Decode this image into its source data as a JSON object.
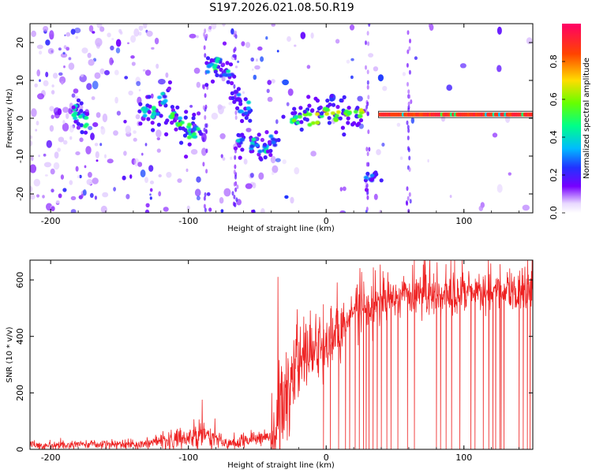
{
  "figure_title": "S197.2026.021.08.50.R19",
  "colors": {
    "signal_line": "#333333",
    "snr_line": "#ee2222"
  },
  "chart_data": [
    {
      "type": "heatmap",
      "name": "spectrogram",
      "xlabel": "Height of straight line (km)",
      "ylabel": "Frequency (Hz)",
      "xlim": [
        -215,
        150
      ],
      "ylim": [
        -25,
        25
      ],
      "x_ticks": [
        -200,
        -100,
        0,
        100
      ],
      "y_ticks": [
        -20,
        -10,
        0,
        10,
        20
      ],
      "colorbar": {
        "label": "Normalized spectral amplitude",
        "range": [
          0,
          1
        ],
        "ticks": [
          0.0,
          0.2,
          0.4,
          0.6,
          0.8
        ],
        "tick_labels": [
          "0.0",
          "0.2",
          "0.4",
          "0.6",
          "0.8"
        ],
        "stops": [
          "#ffffff",
          "#5500ff",
          "#0044ff",
          "#00c8ff",
          "#00ff66",
          "#aaff00",
          "#ffcc00",
          "#ff3300",
          "#ff0066"
        ]
      },
      "signal_track": [
        {
          "x": -182,
          "y": 1,
          "a": 0.55
        },
        {
          "x": -177,
          "y": -1,
          "a": 0.5
        },
        {
          "x": -132,
          "y": 2,
          "a": 0.5
        },
        {
          "x": -124,
          "y": 1.5,
          "a": 0.55
        },
        {
          "x": -118,
          "y": 5,
          "a": 0.45
        },
        {
          "x": -112,
          "y": 0,
          "a": 0.6
        },
        {
          "x": -106,
          "y": -1.5,
          "a": 0.6
        },
        {
          "x": -100,
          "y": -3,
          "a": 0.55
        },
        {
          "x": -96,
          "y": -4,
          "a": 0.5
        },
        {
          "x": -84,
          "y": 13,
          "a": 0.55
        },
        {
          "x": -78,
          "y": 15,
          "a": 0.5
        },
        {
          "x": -72,
          "y": 12,
          "a": 0.45
        },
        {
          "x": -65,
          "y": 6,
          "a": 0.35
        },
        {
          "x": -58,
          "y": 3,
          "a": 0.4
        },
        {
          "x": -62,
          "y": -5,
          "a": 0.4
        },
        {
          "x": -54,
          "y": -7,
          "a": 0.45
        },
        {
          "x": -46,
          "y": -8,
          "a": 0.5
        },
        {
          "x": -38,
          "y": -6,
          "a": 0.4
        },
        {
          "x": -24,
          "y": 0,
          "a": 0.65
        },
        {
          "x": -16,
          "y": 1,
          "a": 0.7
        },
        {
          "x": -8,
          "y": 0.5,
          "a": 0.7
        },
        {
          "x": 0,
          "y": 2,
          "a": 0.75
        },
        {
          "x": 8,
          "y": 1,
          "a": 0.75
        },
        {
          "x": 16,
          "y": 1,
          "a": 0.7
        },
        {
          "x": 24,
          "y": 0.5,
          "a": 0.75
        },
        {
          "x": 34,
          "y": -16,
          "a": 0.35
        }
      ],
      "steady_signal": {
        "x_start": 38,
        "x_end": 150,
        "frequency": 1,
        "amplitude": 0.95
      },
      "noise_density": [
        {
          "from": -215,
          "to": -160,
          "density": 2.6
        },
        {
          "from": -160,
          "to": -120,
          "density": 1.8
        },
        {
          "from": -120,
          "to": -95,
          "density": 0.4
        },
        {
          "from": -95,
          "to": -45,
          "density": 1.2
        },
        {
          "from": -45,
          "to": -20,
          "density": 0.9
        },
        {
          "from": -20,
          "to": 40,
          "density": 0.45
        },
        {
          "from": 40,
          "to": 150,
          "density": 0.22
        }
      ]
    },
    {
      "type": "line",
      "name": "snr",
      "xlabel": "Height of straight line (km)",
      "ylabel": "SNR (10 * v/v)",
      "xlim": [
        -215,
        150
      ],
      "ylim": [
        0,
        670
      ],
      "x_ticks": [
        -200,
        -100,
        0,
        100
      ],
      "y_ticks": [
        0,
        200,
        400,
        600
      ],
      "trend": [
        {
          "x": -215,
          "y": 15
        },
        {
          "x": -130,
          "y": 20
        },
        {
          "x": -115,
          "y": 35
        },
        {
          "x": -90,
          "y": 55
        },
        {
          "x": -70,
          "y": 20
        },
        {
          "x": -40,
          "y": 50
        },
        {
          "x": -32,
          "y": 150
        },
        {
          "x": -24,
          "y": 280
        },
        {
          "x": -15,
          "y": 330
        },
        {
          "x": 0,
          "y": 360
        },
        {
          "x": 10,
          "y": 420
        },
        {
          "x": 20,
          "y": 480
        },
        {
          "x": 35,
          "y": 510
        },
        {
          "x": 50,
          "y": 535
        },
        {
          "x": 80,
          "y": 550
        },
        {
          "x": 150,
          "y": 560
        }
      ],
      "noise_std": [
        {
          "from": -215,
          "to": -120,
          "std": 8
        },
        {
          "from": -120,
          "to": -80,
          "std": 22
        },
        {
          "from": -80,
          "to": -40,
          "std": 12
        },
        {
          "from": -40,
          "to": -10,
          "std": 90
        },
        {
          "from": -10,
          "to": 15,
          "std": 60
        },
        {
          "from": 15,
          "to": 150,
          "std": 35
        }
      ],
      "spikes": [
        {
          "x": -90,
          "y": 175
        },
        {
          "x": -35,
          "y": 610
        },
        {
          "x": -17,
          "y": 360
        },
        {
          "x": 8,
          "y": 590
        }
      ],
      "dropouts": [
        -2,
        3,
        9,
        14,
        17,
        21,
        24,
        27,
        29,
        31,
        34,
        37,
        40,
        44,
        47,
        52,
        59,
        64,
        80,
        83,
        87,
        91,
        97,
        105,
        108,
        114,
        118,
        121,
        123,
        126,
        127,
        129,
        140,
        143,
        146,
        148
      ]
    }
  ]
}
